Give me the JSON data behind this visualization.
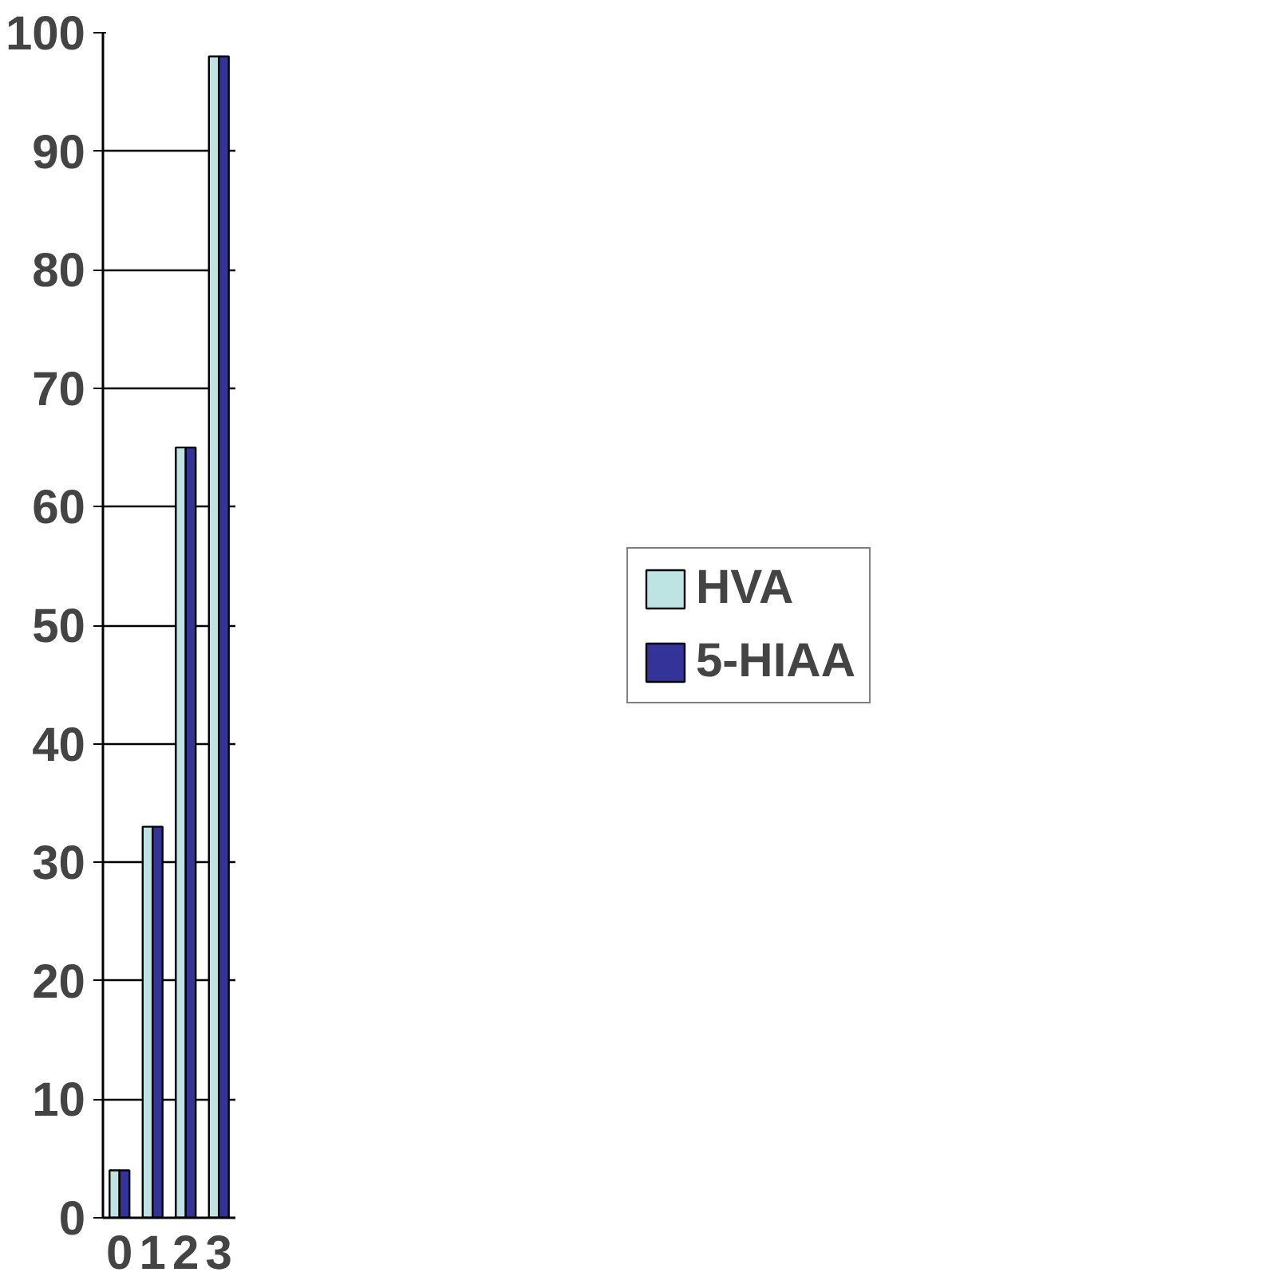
{
  "chart_data": {
    "type": "bar",
    "categories": [
      "0",
      "1",
      "2",
      "3"
    ],
    "series": [
      {
        "name": "HVA",
        "color": "#bde3e3",
        "values": [
          4,
          33,
          65,
          98
        ]
      },
      {
        "name": "5-HIAA",
        "color": "#333399",
        "values": [
          4,
          33,
          65,
          98
        ]
      }
    ],
    "ylim": [
      0,
      100
    ],
    "yticks": [
      0,
      10,
      20,
      30,
      40,
      50,
      60,
      70,
      80,
      90,
      100
    ],
    "grid": "y",
    "legend": "right"
  }
}
